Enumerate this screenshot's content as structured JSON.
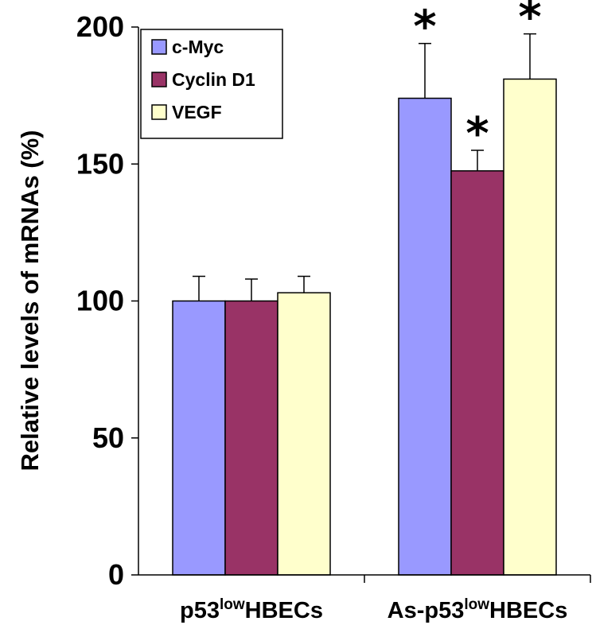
{
  "chart_data": {
    "type": "bar",
    "title": "",
    "ylabel": "Relative levels of mRNAs (%)",
    "xlabel": "",
    "ylim": [
      0,
      200
    ],
    "yticks": [
      0,
      50,
      100,
      150,
      200
    ],
    "categories": [
      {
        "pre": "p53",
        "sup": "low",
        "post": "HBECs"
      },
      {
        "pre": "As-p53",
        "sup": "low",
        "post": "HBECs"
      }
    ],
    "series": [
      {
        "name": "c-Myc",
        "color": "#9999ff",
        "values": [
          100,
          174
        ],
        "errors": [
          9,
          20
        ],
        "significant": [
          false,
          true
        ]
      },
      {
        "name": "Cyclin D1",
        "color": "#993366",
        "values": [
          100,
          147.5
        ],
        "errors": [
          8,
          7.5
        ],
        "significant": [
          false,
          true
        ]
      },
      {
        "name": "VEGF",
        "color": "#ffffcc",
        "values": [
          103,
          181
        ],
        "errors": [
          6,
          16.5
        ],
        "significant": [
          false,
          true
        ]
      }
    ],
    "significance_marker": "*",
    "legend_position": "top-left",
    "grid": false
  }
}
